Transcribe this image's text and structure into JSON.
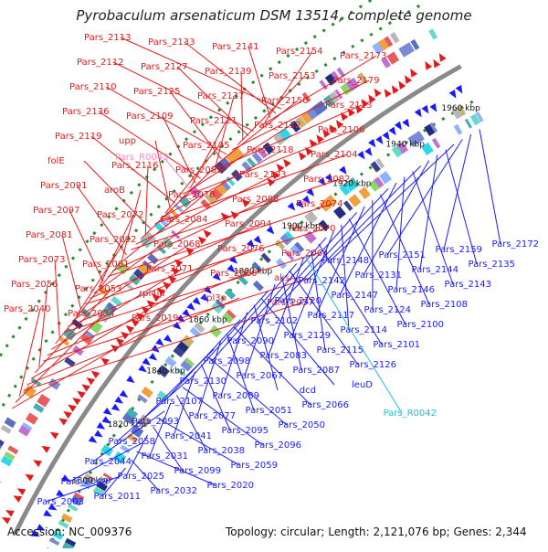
{
  "title": "Pyrobaculum arsenaticum DSM 13514, complete genome",
  "accession": "Accession: NC_009376",
  "summary": "Topology: circular; Length: 2,121,076 bp; Genes: 2,344",
  "colors": {
    "forward": "#e31a1c",
    "reverse": "#1a1aff",
    "rna": "#ff88cc",
    "rna_reverse": "#22bbdd",
    "backbone": "#8a8a8a",
    "dots": "#2a8a2a"
  },
  "ticks": [
    {
      "label": "1800 kbp",
      "kbp": 1800
    },
    {
      "label": "1820 kbp",
      "kbp": 1820
    },
    {
      "label": "1840 kbp",
      "kbp": 1840
    },
    {
      "label": "1860 kbp",
      "kbp": 1860
    },
    {
      "label": "1880 kbp",
      "kbp": 1880
    },
    {
      "label": "1900 kbp",
      "kbp": 1900
    },
    {
      "label": "1920 kbp",
      "kbp": 1920
    },
    {
      "label": "1940 kbp",
      "kbp": 1940
    },
    {
      "label": "1960 kbp",
      "kbp": 1960
    }
  ],
  "forward_genes": [
    "Pars_2113",
    "Pars_2133",
    "Pars_2141",
    "Pars_2154",
    "Pars_2173",
    "Pars_2112",
    "Pars_2127",
    "Pars_2139",
    "Pars_2153",
    "Pars_2179",
    "Pars_2110",
    "Pars_2125",
    "Pars_2137",
    "Pars_2150",
    "Pars_2123",
    "Pars_2136",
    "Pars_2109",
    "Pars_2121",
    "Pars_2132",
    "Pars_2106",
    "Pars_2119",
    "upp",
    "Pars_2105",
    "Pars_2118",
    "Pars_2104",
    "folE",
    "Pars_2116",
    "Pars_2085",
    "Pars_2103",
    "Pars_2082",
    "Pars_2091",
    "aroB",
    "Pars_2078",
    "Pars_2088",
    "Pars_2074",
    "Pars_2097",
    "Pars_2072",
    "Pars_2084",
    "Pars_2094",
    "Pars_2070",
    "Pars_2081",
    "Pars_2092",
    "Pars_2068",
    "Pars_2076",
    "Pars_2064",
    "Pars_2073",
    "Pars_2061",
    "Pars_2071",
    "Pars_2060",
    "aksA",
    "Pars_2056",
    "Pars_2053",
    "rpl4lp",
    "rpl3p",
    "Pars_2057",
    "Pars_2040",
    "Pars_2034",
    "Pars_2019"
  ],
  "forward_rna": [
    "Pars_R0043"
  ],
  "reverse_genes": [
    "Pars_2172",
    "Pars_2159",
    "Pars_2151",
    "Pars_2148",
    "Pars_2135",
    "Pars_2144",
    "Pars_2131",
    "Pars_2142",
    "Pars_2143",
    "Pars_2146",
    "Pars_2147",
    "Pars_2120",
    "Pars_2108",
    "Pars_2124",
    "Pars_2117",
    "Pars_2102",
    "Pars_2100",
    "Pars_2114",
    "Pars_2129",
    "Pars_2090",
    "Pars_2101",
    "Pars_2115",
    "Pars_2083",
    "Pars_2098",
    "Pars_2126",
    "Pars_2087",
    "Pars_2067",
    "Pars_2130",
    "leuD",
    "dcd",
    "Pars_2089",
    "Pars_2107",
    "Pars_2066",
    "Pars_2051",
    "Pars_2077",
    "Pars_2093",
    "Pars_2050",
    "Pars_2095",
    "Pars_2041",
    "Pars_2058",
    "Pars_2096",
    "Pars_2038",
    "Pars_2031",
    "Pars_2044",
    "Pars_2059",
    "Pars_2099",
    "Pars_2025",
    "Pars_2049",
    "Pars_2020",
    "Pars_2032",
    "Pars_2011",
    "Pars_2003"
  ],
  "reverse_rna": [
    "Pars_R0042"
  ]
}
